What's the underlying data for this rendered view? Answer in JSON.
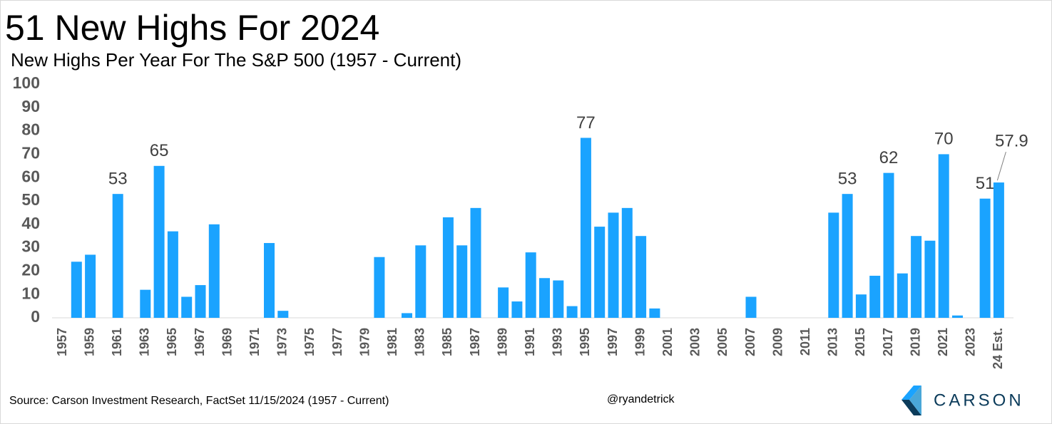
{
  "chart_data": {
    "type": "bar",
    "title": "51 New Highs For 2024",
    "subtitle": "New Highs Per Year For The S&P 500 (1957 - Current)",
    "categories": [
      "1957",
      null,
      "1959",
      null,
      "1961",
      null,
      "1963",
      null,
      "1965",
      null,
      "1967",
      null,
      "1969",
      null,
      "1971",
      null,
      "1973",
      null,
      "1975",
      null,
      "1977",
      null,
      "1979",
      null,
      "1981",
      null,
      "1983",
      null,
      "1985",
      null,
      "1987",
      null,
      "1989",
      null,
      "1991",
      null,
      "1993",
      null,
      "1995",
      null,
      "1997",
      null,
      "1999",
      null,
      "2001",
      null,
      "2003",
      null,
      "2005",
      null,
      "2007",
      null,
      "2009",
      null,
      "2011",
      null,
      "2013",
      null,
      "2015",
      null,
      "2017",
      null,
      "2019",
      null,
      "2021",
      null,
      "2023",
      null,
      "24 Est."
    ],
    "values": [
      0,
      24,
      27,
      0,
      53,
      0,
      12,
      65,
      37,
      9,
      14,
      40,
      0,
      0,
      0,
      32,
      3,
      0,
      0,
      0,
      0,
      0,
      0,
      26,
      0,
      2,
      31,
      0,
      43,
      31,
      47,
      0,
      13,
      7,
      28,
      17,
      16,
      5,
      77,
      39,
      45,
      47,
      35,
      4,
      0,
      0,
      0,
      0,
      0,
      0,
      9,
      0,
      0,
      0,
      0,
      0,
      45,
      53,
      10,
      18,
      62,
      19,
      35,
      33,
      70,
      1,
      0,
      51,
      57.9
    ],
    "value_labels": [
      null,
      null,
      null,
      null,
      "53",
      null,
      null,
      "65",
      null,
      null,
      null,
      null,
      null,
      null,
      null,
      null,
      null,
      null,
      null,
      null,
      null,
      null,
      null,
      null,
      null,
      null,
      null,
      null,
      null,
      null,
      null,
      null,
      null,
      null,
      null,
      null,
      null,
      null,
      "77",
      null,
      null,
      null,
      null,
      null,
      null,
      null,
      null,
      null,
      null,
      null,
      null,
      null,
      null,
      null,
      null,
      null,
      null,
      "53",
      null,
      null,
      "62",
      null,
      null,
      null,
      "70",
      null,
      null,
      "51",
      "57.9"
    ],
    "color": "#1aa3ff",
    "ylim": [
      0,
      100
    ],
    "yticks": [
      0,
      10,
      20,
      30,
      40,
      50,
      60,
      70,
      80,
      90,
      100
    ],
    "grid": false,
    "source": "Source: Carson Investment Research, FactSet 11/15/2024 (1957 - Current)",
    "handle": "@ryandetrick",
    "brand": "CARSON"
  }
}
